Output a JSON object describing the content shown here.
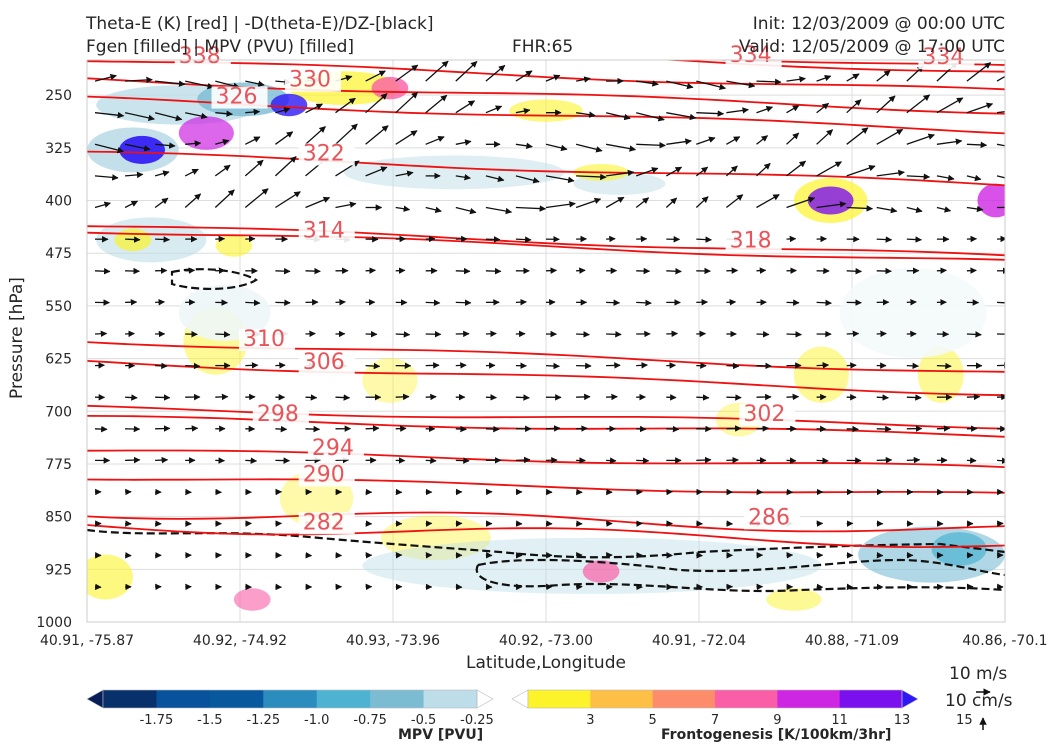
{
  "header": {
    "title_left_1": "Theta-E (K) [red] | -D(theta-E)/DZ-[black]",
    "title_left_2": "Fgen [filled] | MPV (PVU) [filled]",
    "title_center": "FHR:65",
    "title_right_1": "Init: 12/03/2009 @ 00:00 UTC",
    "title_right_2": "Valid: 12/05/2009 @ 17:00 UTC"
  },
  "axes": {
    "ylabel": "Pressure [hPa]",
    "xlabel": "Latitude,Longitude"
  },
  "chart_data": {
    "type": "cross-section contour",
    "y_scale": "linear, inverted",
    "ylim": [
      1000,
      200
    ],
    "y_ticks": [
      250,
      325,
      400,
      475,
      550,
      625,
      700,
      775,
      850,
      925,
      1000
    ],
    "x_tick_labels": [
      "40.91, -75.87",
      "40.92, -74.92",
      "40.93, -73.96",
      "40.92, -73.00",
      "40.91, -72.04",
      "40.88, -71.09",
      "40.86, -70.1"
    ],
    "grid": true,
    "theta_e_contours": [
      {
        "value": 282,
        "label_x": 0.235,
        "label_p": 868
      },
      {
        "value": 286,
        "label_x": 0.72,
        "label_p": 861
      },
      {
        "value": 290,
        "label_x": 0.235,
        "label_p": 800
      },
      {
        "value": 294,
        "label_x": 0.245,
        "label_p": 762
      },
      {
        "value": 298,
        "label_x": 0.185,
        "label_p": 714
      },
      {
        "value": 302,
        "label_x": 0.715,
        "label_p": 714
      },
      {
        "value": 306,
        "label_x": 0.235,
        "label_p": 640
      },
      {
        "value": 310,
        "label_x": 0.17,
        "label_p": 607
      },
      {
        "value": 314,
        "label_x": 0.235,
        "label_p": 453
      },
      {
        "value": 318,
        "label_x": 0.7,
        "label_p": 467
      },
      {
        "value": 322,
        "label_x": 0.235,
        "label_p": 343
      },
      {
        "value": 326,
        "label_x": 0.14,
        "label_p": 262
      },
      {
        "value": 330,
        "label_x": 0.22,
        "label_p": 238
      },
      {
        "value": 334,
        "label_x": 0.7,
        "label_p": 203
      },
      {
        "value": 334,
        "label_x": 0.91,
        "label_p": 206
      },
      {
        "value": 338,
        "label_x": 0.1,
        "label_p": 204
      }
    ],
    "mpv_colorbar": {
      "label": "MPV [PVU]",
      "tick_labels": [
        "-1.75",
        "-1.5",
        "-1.25",
        "-1.0",
        "-0.75",
        "-0.5",
        "-0.25"
      ],
      "colors": [
        "#081d58",
        "#08306b",
        "#08519c",
        "#08589e",
        "#2b8cbe",
        "#4eb3d3",
        "#7bbcd3",
        "#bddde8",
        "#ffffff"
      ]
    },
    "fgen_colorbar": {
      "label": "Frontogenesis [K/100km/3hr]",
      "tick_labels": [
        "3",
        "5",
        "7",
        "9",
        "11",
        "13",
        "15"
      ],
      "colors": [
        "#ffffff",
        "#fcf32a",
        "#fdbf45",
        "#fc8c6a",
        "#f95ea6",
        "#ce27e3",
        "#7b10ef",
        "#2d17f5"
      ]
    }
  },
  "legend": {
    "key_1": "10 m/s",
    "key_2": "10 cm/s"
  }
}
